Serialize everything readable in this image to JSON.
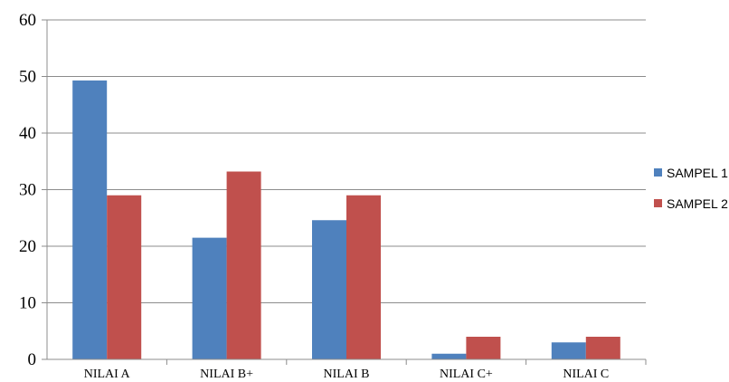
{
  "chart_data": {
    "type": "bar",
    "categories": [
      "NILAI A",
      "NILAI B+",
      "NILAI B",
      "NILAI C+",
      "NILAI C"
    ],
    "series": [
      {
        "name": "SAMPEL 1",
        "color": "#4f81bd",
        "values": [
          49.3,
          21.5,
          24.6,
          1.0,
          3.0
        ]
      },
      {
        "name": "SAMPEL 2",
        "color": "#c0504d",
        "values": [
          29.0,
          33.2,
          29.0,
          4.0,
          4.0
        ]
      }
    ],
    "yticks": [
      "0",
      "10",
      "20",
      "30",
      "40",
      "50",
      "60"
    ],
    "ylim": [
      0,
      60
    ],
    "grid": true,
    "legend_position": "right",
    "title": "",
    "xlabel": "",
    "ylabel": ""
  }
}
